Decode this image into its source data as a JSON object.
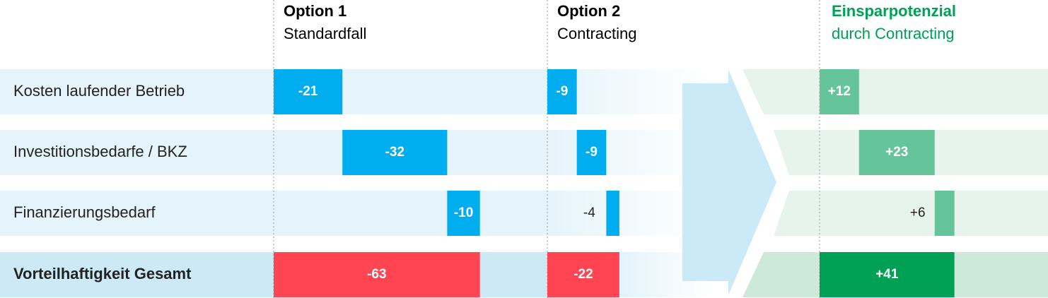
{
  "headers": {
    "option1": {
      "title": "Option 1",
      "subtitle": "Standardfall"
    },
    "option2": {
      "title": "Option 2",
      "subtitle": "Contracting"
    },
    "savings": {
      "title": "Einsparpotenzial",
      "subtitle": "durch Contracting"
    }
  },
  "colors": {
    "option_bar": "#00aeef",
    "total_bar": "#ff4552",
    "savings_bar": "#66c49a",
    "savings_total_bar": "#00a055",
    "savings_title": "#00a055",
    "row_band": "#e5f4fa",
    "total_band": "#cce9f5",
    "savings_band": "#e6f4ed",
    "savings_total_band": "#cde9da",
    "arrow": "#cbeaf7"
  },
  "chart_data": {
    "type": "bar",
    "subtype": "waterfall-comparison",
    "categories": [
      "Kosten laufender Betrieb",
      "Investitionsbedarfe / BKZ",
      "Finanzierungsbedarf",
      "Vorteilhaftigkeit Gesamt"
    ],
    "series": [
      {
        "name": "Option 1",
        "values": [
          -21,
          -32,
          -10,
          -63
        ],
        "labels": [
          "-21",
          "-32",
          "-10",
          "-63"
        ]
      },
      {
        "name": "Option 2",
        "values": [
          -9,
          -9,
          -4,
          -22
        ],
        "labels": [
          "-9",
          "-9",
          "-4",
          "-22"
        ]
      },
      {
        "name": "Einsparpotenzial",
        "values": [
          12,
          23,
          6,
          41
        ],
        "labels": [
          "+12",
          "+23",
          "+6",
          "+41"
        ]
      }
    ]
  }
}
